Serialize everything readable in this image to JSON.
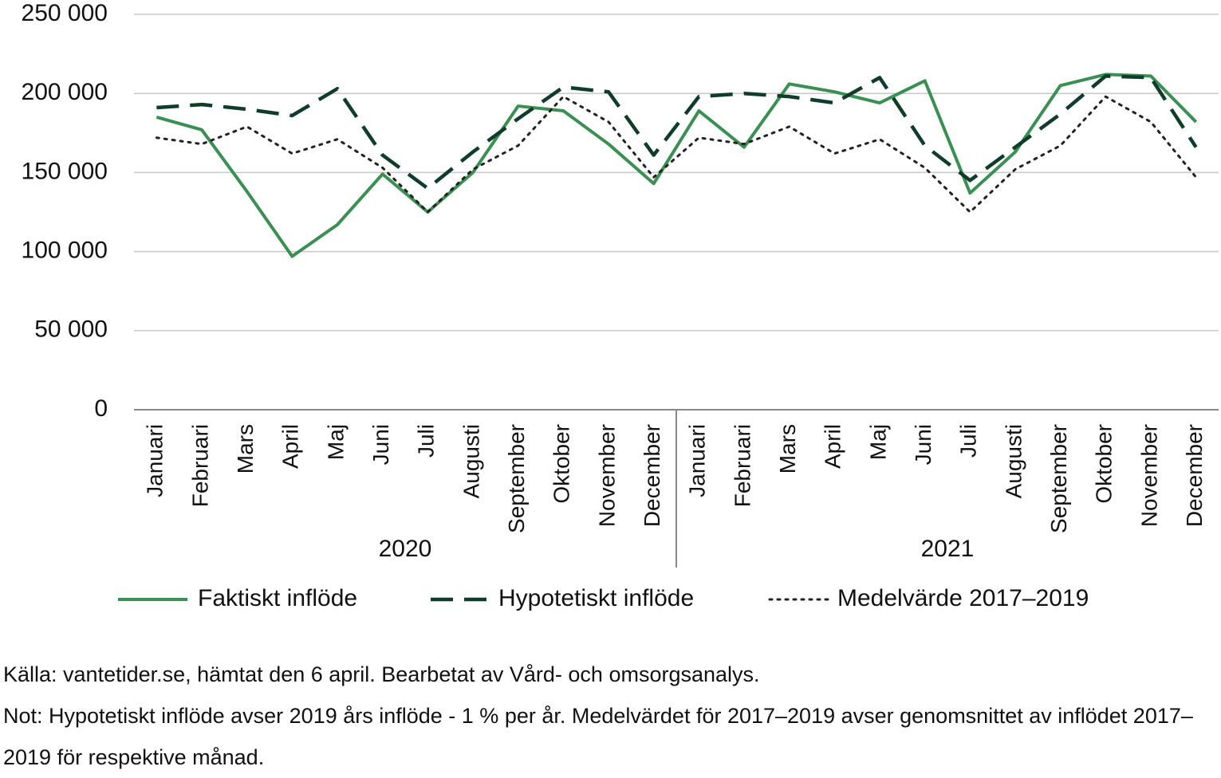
{
  "chart_data": {
    "type": "line",
    "categories": [
      "Januari",
      "Februari",
      "Mars",
      "April",
      "Maj",
      "Juni",
      "Juli",
      "Augusti",
      "September",
      "Oktober",
      "November",
      "December",
      "Januari",
      "Februari",
      "Mars",
      "April",
      "Maj",
      "Juni",
      "Juli",
      "Augusti",
      "September",
      "Oktober",
      "November",
      "December"
    ],
    "groups": [
      "2020",
      "2021"
    ],
    "series": [
      {
        "name": "Faktiskt inflöde",
        "color": "#3a8f52",
        "dash": "solid",
        "values": [
          185000,
          177000,
          138000,
          97000,
          117000,
          149000,
          125000,
          150000,
          192000,
          189000,
          168000,
          143000,
          189000,
          166000,
          206000,
          201000,
          194000,
          208000,
          137000,
          163000,
          205000,
          212000,
          211000,
          182000
        ]
      },
      {
        "name": "Hypotetiskt inflöde",
        "color": "#0f3d2a",
        "dash": "dashed",
        "values": [
          191000,
          193000,
          190000,
          186000,
          203000,
          161000,
          140000,
          163000,
          184000,
          204000,
          201000,
          161000,
          198000,
          200000,
          198000,
          194000,
          210000,
          167000,
          145000,
          166000,
          187000,
          211000,
          210000,
          166000
        ]
      },
      {
        "name": "Medelvärde 2017–2019",
        "color": "#222222",
        "dash": "dotted",
        "values": [
          172000,
          168000,
          179000,
          162000,
          171000,
          153000,
          125000,
          152000,
          167000,
          198000,
          182000,
          147000,
          172000,
          168000,
          179000,
          162000,
          171000,
          153000,
          125000,
          152000,
          167000,
          198000,
          182000,
          147000
        ]
      }
    ],
    "ylim": [
      0,
      250000
    ],
    "yticks": [
      {
        "value": 0,
        "label": "0"
      },
      {
        "value": 50000,
        "label": "50 000"
      },
      {
        "value": 100000,
        "label": "100 000"
      },
      {
        "value": 150000,
        "label": "150 000"
      },
      {
        "value": 200000,
        "label": "200 000"
      },
      {
        "value": 250000,
        "label": "250 000"
      }
    ],
    "grid": true,
    "legend": "bottom",
    "source": "Källa: vantetider.se, hämtat den 6 april. Bearbetat av Vård- och omsorgsanalys.",
    "note": "Not: Hypotetiskt inflöde avser 2019 års inflöde - 1 % per år. Medelvärdet för 2017–2019 avser genomsnittet av inflödet 2017–2019 för respektive månad."
  }
}
